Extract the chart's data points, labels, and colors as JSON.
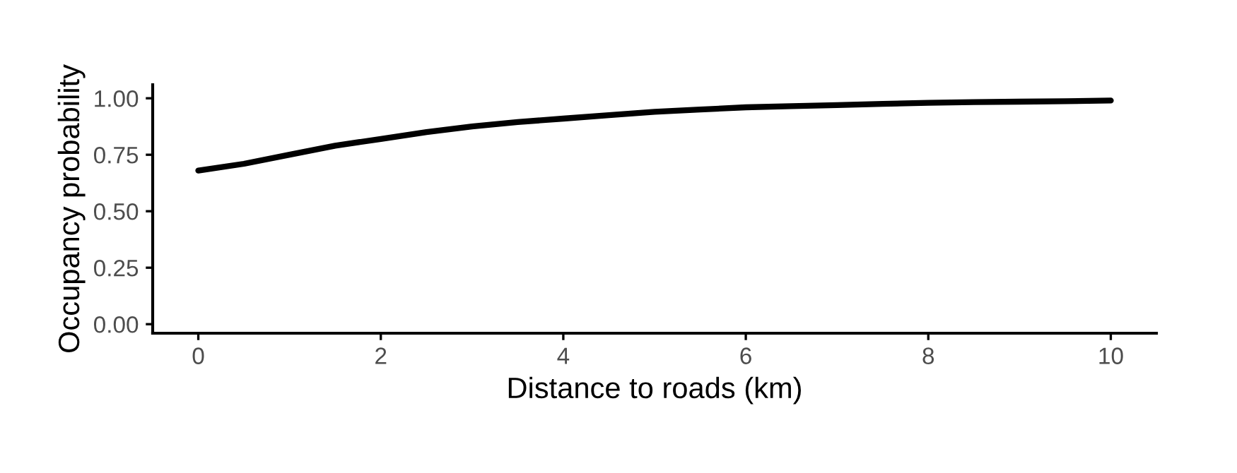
{
  "chart_data": {
    "type": "line",
    "xlabel": "Distance to roads (km)",
    "ylabel": "Occupancy probability",
    "x": [
      0,
      0.5,
      1,
      1.5,
      2,
      2.5,
      3,
      3.5,
      4,
      4.5,
      5,
      5.5,
      6,
      6.5,
      7,
      7.5,
      8,
      8.5,
      9,
      9.5,
      10
    ],
    "series": [
      {
        "color": "#000000",
        "values": [
          0.68,
          0.71,
          0.75,
          0.79,
          0.82,
          0.85,
          0.875,
          0.895,
          0.91,
          0.925,
          0.94,
          0.95,
          0.96,
          0.965,
          0.97,
          0.975,
          0.98,
          0.983,
          0.985,
          0.987,
          0.99
        ]
      }
    ],
    "xlim": [
      -0.5,
      10.5
    ],
    "ylim": [
      -0.04,
      1.06
    ],
    "xticks": [
      0,
      2,
      4,
      6,
      8,
      10
    ],
    "yticks": [
      {
        "value": 0,
        "label": "0.00"
      },
      {
        "value": 0.25,
        "label": "0.25"
      },
      {
        "value": 0.5,
        "label": "0.50"
      },
      {
        "value": 0.75,
        "label": "0.75"
      },
      {
        "value": 1,
        "label": "1.00"
      }
    ],
    "grid": false,
    "legend": false
  }
}
